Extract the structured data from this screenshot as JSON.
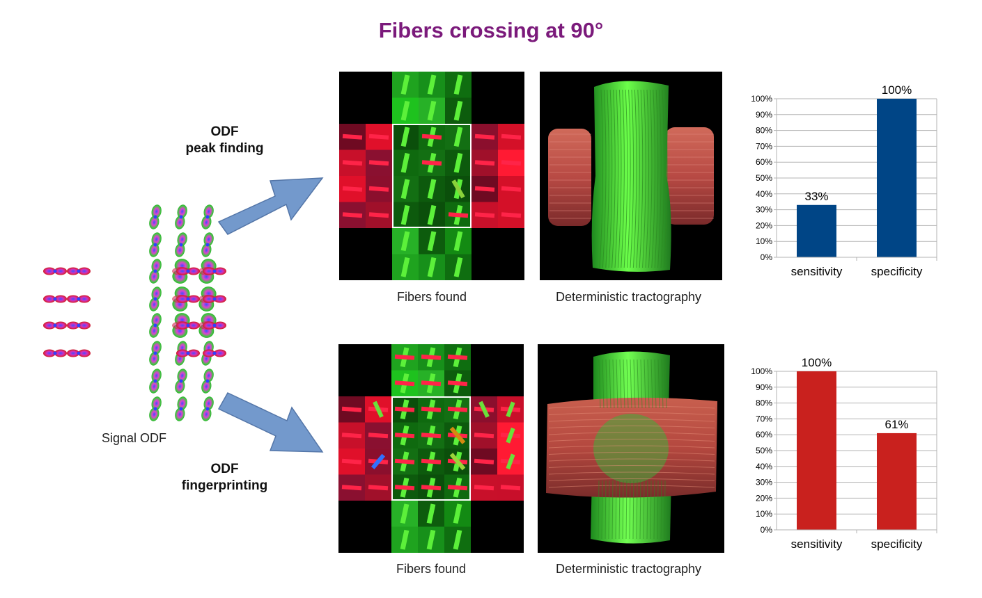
{
  "title": "Fibers crossing at 90°",
  "signal_caption": "Signal ODF",
  "methods": [
    {
      "line1": "ODF",
      "line2": "peak finding"
    },
    {
      "line1": "ODF",
      "line2": "fingerprinting"
    }
  ],
  "captions": {
    "fibers_found": "Fibers found",
    "tractography": "Deterministic tractography"
  },
  "chart_data": [
    {
      "type": "bar",
      "categories": [
        "sensitivity",
        "specificity"
      ],
      "values": [
        33,
        100
      ],
      "data_labels": [
        "33%",
        "100%"
      ],
      "yticks": [
        "0%",
        "10%",
        "20%",
        "30%",
        "40%",
        "50%",
        "60%",
        "70%",
        "80%",
        "90%",
        "100%"
      ],
      "ylim": [
        0,
        100
      ],
      "color": "#004586",
      "grid": true
    },
    {
      "type": "bar",
      "categories": [
        "sensitivity",
        "specificity"
      ],
      "values": [
        100,
        61
      ],
      "data_labels": [
        "100%",
        "61%"
      ],
      "yticks": [
        "0%",
        "10%",
        "20%",
        "30%",
        "40%",
        "50%",
        "60%",
        "70%",
        "80%",
        "90%",
        "100%"
      ],
      "ylim": [
        0,
        100
      ],
      "color": "#c9211e",
      "grid": true
    }
  ]
}
